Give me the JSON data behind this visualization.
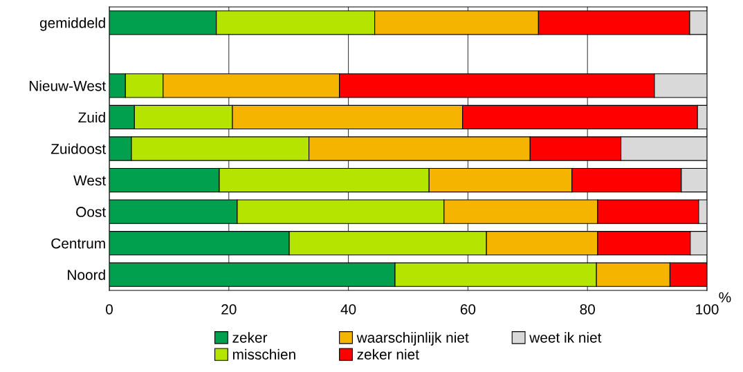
{
  "chart_data": {
    "type": "bar",
    "orientation": "horizontal",
    "stacked": true,
    "categories": [
      "gemiddeld",
      null,
      "Nieuw-West",
      "Zuid",
      "Zuidoost",
      "West",
      "Oost",
      "Centrum",
      "Noord"
    ],
    "series": [
      {
        "name": "zeker",
        "color": "#00a04f",
        "values": [
          17.9,
          null,
          2.7,
          4.2,
          3.7,
          18.4,
          21.4,
          30.1,
          47.8
        ]
      },
      {
        "name": "misschien",
        "color": "#b5e400",
        "values": [
          26.5,
          null,
          6.3,
          16.4,
          29.7,
          35.1,
          34.6,
          33.0,
          33.7
        ]
      },
      {
        "name": "waarschijnlijk niet",
        "color": "#f5b400",
        "values": [
          27.4,
          null,
          29.5,
          38.5,
          37.0,
          23.9,
          25.7,
          18.6,
          12.3
        ]
      },
      {
        "name": "zeker niet",
        "color": "#ff0000",
        "values": [
          25.3,
          null,
          52.7,
          39.3,
          15.2,
          18.3,
          16.9,
          15.5,
          6.2
        ]
      },
      {
        "name": "weet ik niet",
        "color": "#d9d9d9",
        "values": [
          2.9,
          null,
          8.8,
          1.6,
          14.4,
          4.3,
          1.4,
          2.8,
          0
        ]
      }
    ],
    "xlim": [
      0,
      100
    ],
    "xticks": [
      0,
      20,
      40,
      60,
      80,
      100
    ],
    "xlabel": "%",
    "grid": "x",
    "legend": "bottom"
  }
}
